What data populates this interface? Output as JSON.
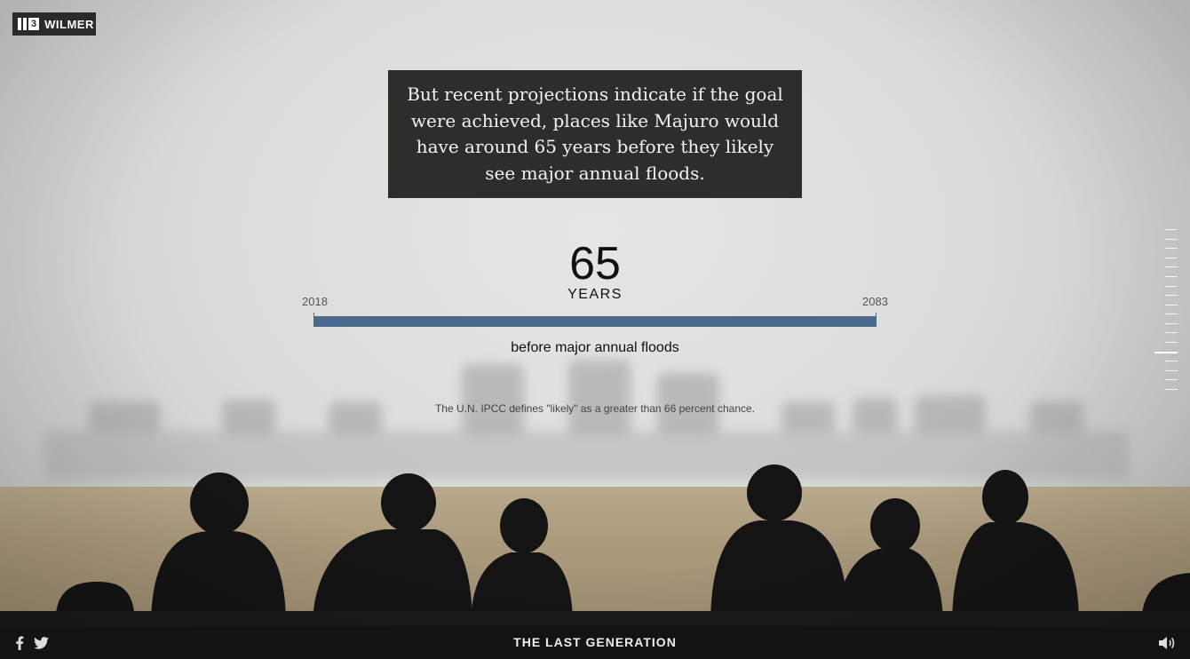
{
  "brand": {
    "logo_number": "3",
    "logo_text": "WILMER"
  },
  "quote": "But recent projections indicate if the goal were achieved, places like Majuro would have around 65 years before they likely see major annual floods.",
  "stat": {
    "value": "65",
    "unit": "YEARS",
    "start_label": "2018",
    "end_label": "2083",
    "fill_fraction": 1.0,
    "caption": "before major annual floods"
  },
  "note": "The U.N. IPCC defines \"likely\" as a greater than 66 percent chance.",
  "footer": {
    "title": "THE LAST GENERATION"
  },
  "icons": {
    "facebook": "facebook-icon",
    "twitter": "twitter-icon",
    "sound": "speaker-icon"
  },
  "colors": {
    "bar": "#4a6b8c",
    "quote_bg": "#2d2d2d",
    "footer_bg": "#131313"
  },
  "scroll_progress": {
    "total_steps": 18,
    "active_step": 13
  }
}
